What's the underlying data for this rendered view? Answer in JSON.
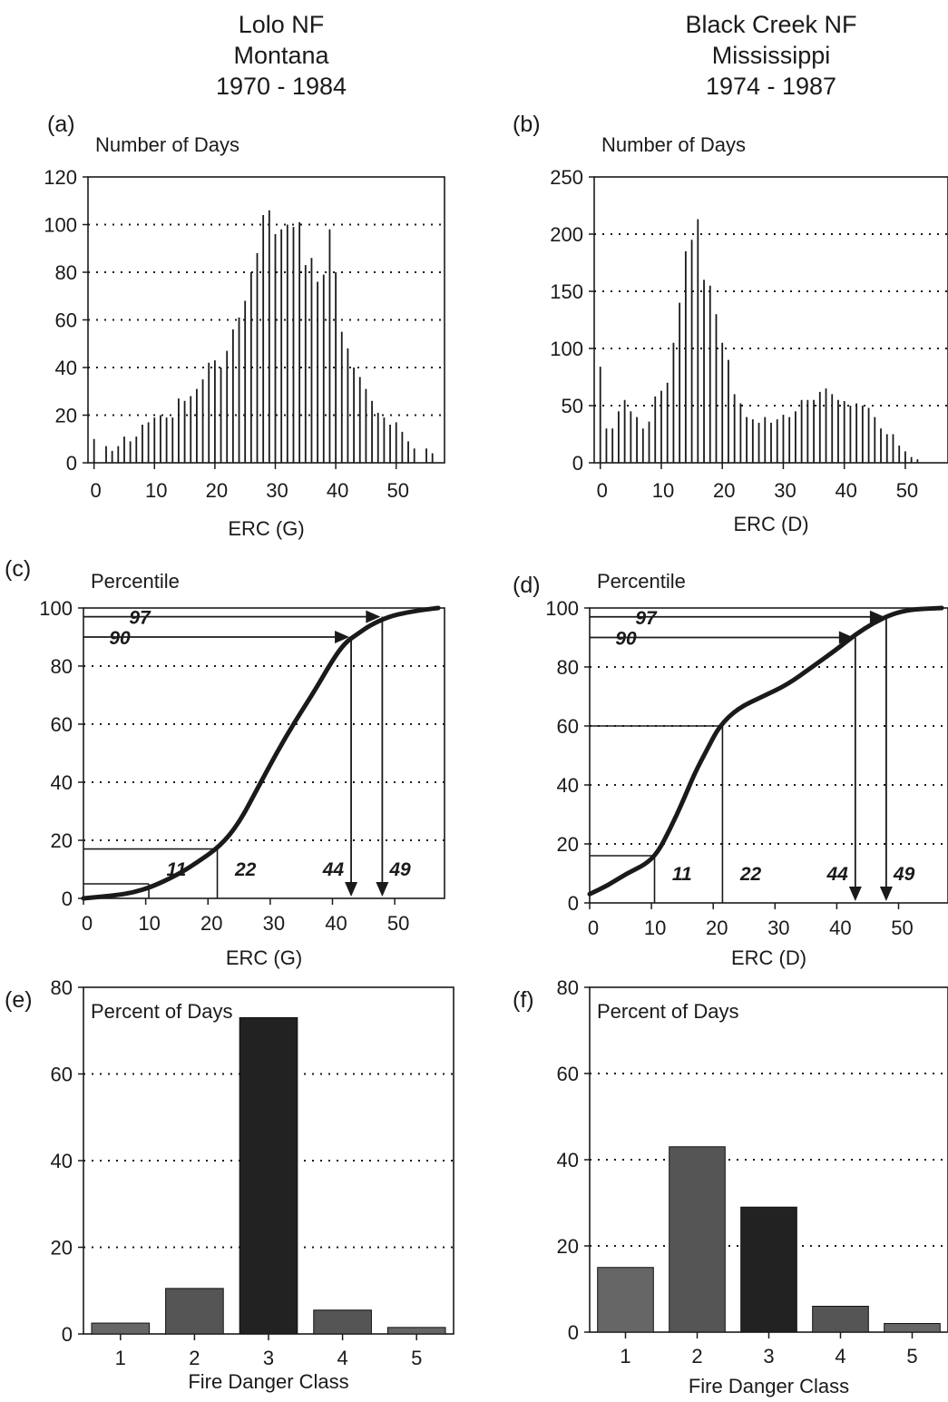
{
  "columns": [
    {
      "name": "Lolo NF",
      "state": "Montana",
      "years": "1970 - 1984"
    },
    {
      "name": "Black Creek NF",
      "state": "Mississippi",
      "years": "1974 - 1987"
    }
  ],
  "colors": {
    "ink": "#1a1a1a",
    "grid": "#1a1a1a",
    "bar_light": "#666666",
    "bar_mid": "#555555",
    "bar_dark": "#222222"
  },
  "chart_data": [
    {
      "id": "a",
      "label": "(a)",
      "type": "bar",
      "title": "",
      "ylabel": "Number of Days",
      "xlabel": "ERC (G)",
      "xlim": [
        -1,
        58
      ],
      "ylim": [
        0,
        120
      ],
      "xticks": [
        0,
        10,
        20,
        30,
        40,
        50
      ],
      "yticks": [
        0,
        20,
        40,
        60,
        80,
        100,
        120
      ],
      "grid_y": [
        20,
        40,
        60,
        80,
        100
      ],
      "x": [
        0,
        2,
        3,
        4,
        5,
        6,
        7,
        8,
        9,
        10,
        11,
        12,
        13,
        14,
        15,
        16,
        17,
        18,
        19,
        20,
        21,
        22,
        23,
        24,
        25,
        26,
        27,
        28,
        29,
        30,
        31,
        32,
        33,
        34,
        35,
        36,
        37,
        38,
        39,
        40,
        41,
        42,
        43,
        44,
        45,
        46,
        47,
        48,
        49,
        50,
        51,
        52,
        53,
        55,
        56
      ],
      "values": [
        10,
        7,
        5,
        7,
        11,
        9,
        11,
        16,
        17,
        19,
        20,
        19,
        19,
        27,
        26,
        28,
        31,
        35,
        42,
        43,
        40,
        47,
        56,
        61,
        68,
        80,
        88,
        104,
        106,
        96,
        98,
        100,
        99,
        101,
        83,
        86,
        76,
        79,
        98,
        80,
        55,
        48,
        40,
        36,
        31,
        26,
        21,
        19,
        16,
        17,
        13,
        9,
        6,
        6,
        4
      ]
    },
    {
      "id": "b",
      "label": "(b)",
      "type": "bar",
      "title": "",
      "ylabel": "Number of Days",
      "xlabel": "ERC (D)",
      "xlim": [
        -1,
        57
      ],
      "ylim": [
        0,
        250
      ],
      "xticks": [
        0,
        10,
        20,
        30,
        40,
        50
      ],
      "yticks": [
        0,
        50,
        100,
        150,
        200,
        250
      ],
      "grid_y": [
        50,
        100,
        150,
        200
      ],
      "x": [
        0,
        1,
        2,
        3,
        4,
        5,
        6,
        7,
        8,
        9,
        10,
        11,
        12,
        13,
        14,
        15,
        16,
        17,
        18,
        19,
        20,
        21,
        22,
        23,
        24,
        25,
        26,
        27,
        28,
        29,
        30,
        31,
        32,
        33,
        34,
        35,
        36,
        37,
        38,
        39,
        40,
        41,
        42,
        43,
        44,
        45,
        46,
        47,
        48,
        49,
        50,
        51,
        52
      ],
      "values": [
        84,
        30,
        30,
        45,
        55,
        45,
        40,
        30,
        36,
        58,
        63,
        70,
        105,
        140,
        185,
        195,
        213,
        160,
        155,
        130,
        105,
        90,
        60,
        52,
        40,
        38,
        35,
        40,
        35,
        38,
        42,
        40,
        45,
        55,
        55,
        55,
        62,
        65,
        60,
        55,
        54,
        50,
        52,
        50,
        48,
        40,
        30,
        25,
        25,
        15,
        10,
        5,
        3
      ]
    },
    {
      "id": "c",
      "label": "(c)",
      "type": "line",
      "title": "",
      "ylabel": "Percentile",
      "xlabel": "ERC (G)",
      "xlim": [
        0,
        58
      ],
      "ylim": [
        0,
        100
      ],
      "xticks": [
        0,
        10,
        20,
        30,
        40,
        50
      ],
      "yticks": [
        0,
        20,
        40,
        60,
        80,
        100
      ],
      "grid_y": [
        20,
        40,
        60,
        80
      ],
      "x": [
        0,
        5,
        8,
        11,
        15,
        18,
        22,
        25,
        28,
        31,
        34,
        37,
        40,
        42,
        44,
        46,
        49,
        52,
        55,
        57
      ],
      "y": [
        0,
        1,
        2,
        4,
        8,
        12,
        18,
        26,
        38,
        50,
        61,
        71,
        82,
        88,
        91,
        94,
        97,
        98.5,
        99.5,
        100
      ],
      "gap_x": [
        11,
        14
      ],
      "percentile_lines": [
        {
          "value": 5,
          "erc": 11
        },
        {
          "value": 17,
          "erc": 22
        }
      ],
      "arrow_lines": [
        {
          "percentile": 90,
          "erc": 44,
          "pct_label": "90"
        },
        {
          "percentile": 97,
          "erc": 49,
          "pct_label": "97"
        }
      ],
      "erc_labels": [
        {
          "erc": 11,
          "text": "11"
        },
        {
          "erc": 22,
          "text": "22"
        },
        {
          "erc": 44,
          "text": "44"
        },
        {
          "erc": 49,
          "text": "49"
        }
      ]
    },
    {
      "id": "d",
      "label": "(d)",
      "type": "line",
      "title": "",
      "ylabel": "Percentile",
      "xlabel": "ERC (D)",
      "xlim": [
        0,
        58
      ],
      "ylim": [
        0,
        100
      ],
      "xticks": [
        0,
        10,
        20,
        30,
        40,
        50
      ],
      "yticks": [
        0,
        20,
        40,
        60,
        80,
        100
      ],
      "grid_y": [
        20,
        40,
        60,
        80
      ],
      "x": [
        0,
        3,
        6,
        9,
        11,
        13,
        15,
        17,
        19,
        21,
        24,
        28,
        32,
        36,
        40,
        43,
        46,
        49,
        52,
        57
      ],
      "y": [
        3,
        6,
        10,
        13,
        17,
        25,
        34,
        44,
        52,
        60,
        66,
        70,
        74,
        80,
        86,
        91,
        95,
        98,
        99.5,
        100
      ],
      "gap_x": [],
      "percentile_lines": [
        {
          "value": 16,
          "erc": 11
        },
        {
          "value": 60,
          "erc": 22
        }
      ],
      "arrow_lines": [
        {
          "percentile": 90,
          "erc": 44,
          "pct_label": "90"
        },
        {
          "percentile": 97,
          "erc": 49,
          "pct_label": "97"
        }
      ],
      "erc_labels": [
        {
          "erc": 11,
          "text": "11"
        },
        {
          "erc": 22,
          "text": "22"
        },
        {
          "erc": 44,
          "text": "44"
        },
        {
          "erc": 49,
          "text": "49"
        }
      ]
    },
    {
      "id": "e",
      "label": "(e)",
      "type": "bar",
      "title": "",
      "ylabel": "Percent of Days",
      "xlabel": "Fire Danger Class",
      "categories": [
        "1",
        "2",
        "3",
        "4",
        "5"
      ],
      "values": [
        2.5,
        10.5,
        73,
        5.5,
        1.5
      ],
      "ylim": [
        0,
        80
      ],
      "yticks": [
        0,
        20,
        40,
        60,
        80
      ],
      "grid_y": [
        20,
        40,
        60
      ]
    },
    {
      "id": "f",
      "label": "(f)",
      "type": "bar",
      "title": "",
      "ylabel": "Percent of Days",
      "xlabel": "Fire Danger Class",
      "categories": [
        "1",
        "2",
        "3",
        "4",
        "5"
      ],
      "values": [
        15,
        43,
        29,
        6,
        2
      ],
      "ylim": [
        0,
        80
      ],
      "yticks": [
        0,
        20,
        40,
        60,
        80
      ],
      "grid_y": [
        20,
        40,
        60
      ]
    }
  ]
}
